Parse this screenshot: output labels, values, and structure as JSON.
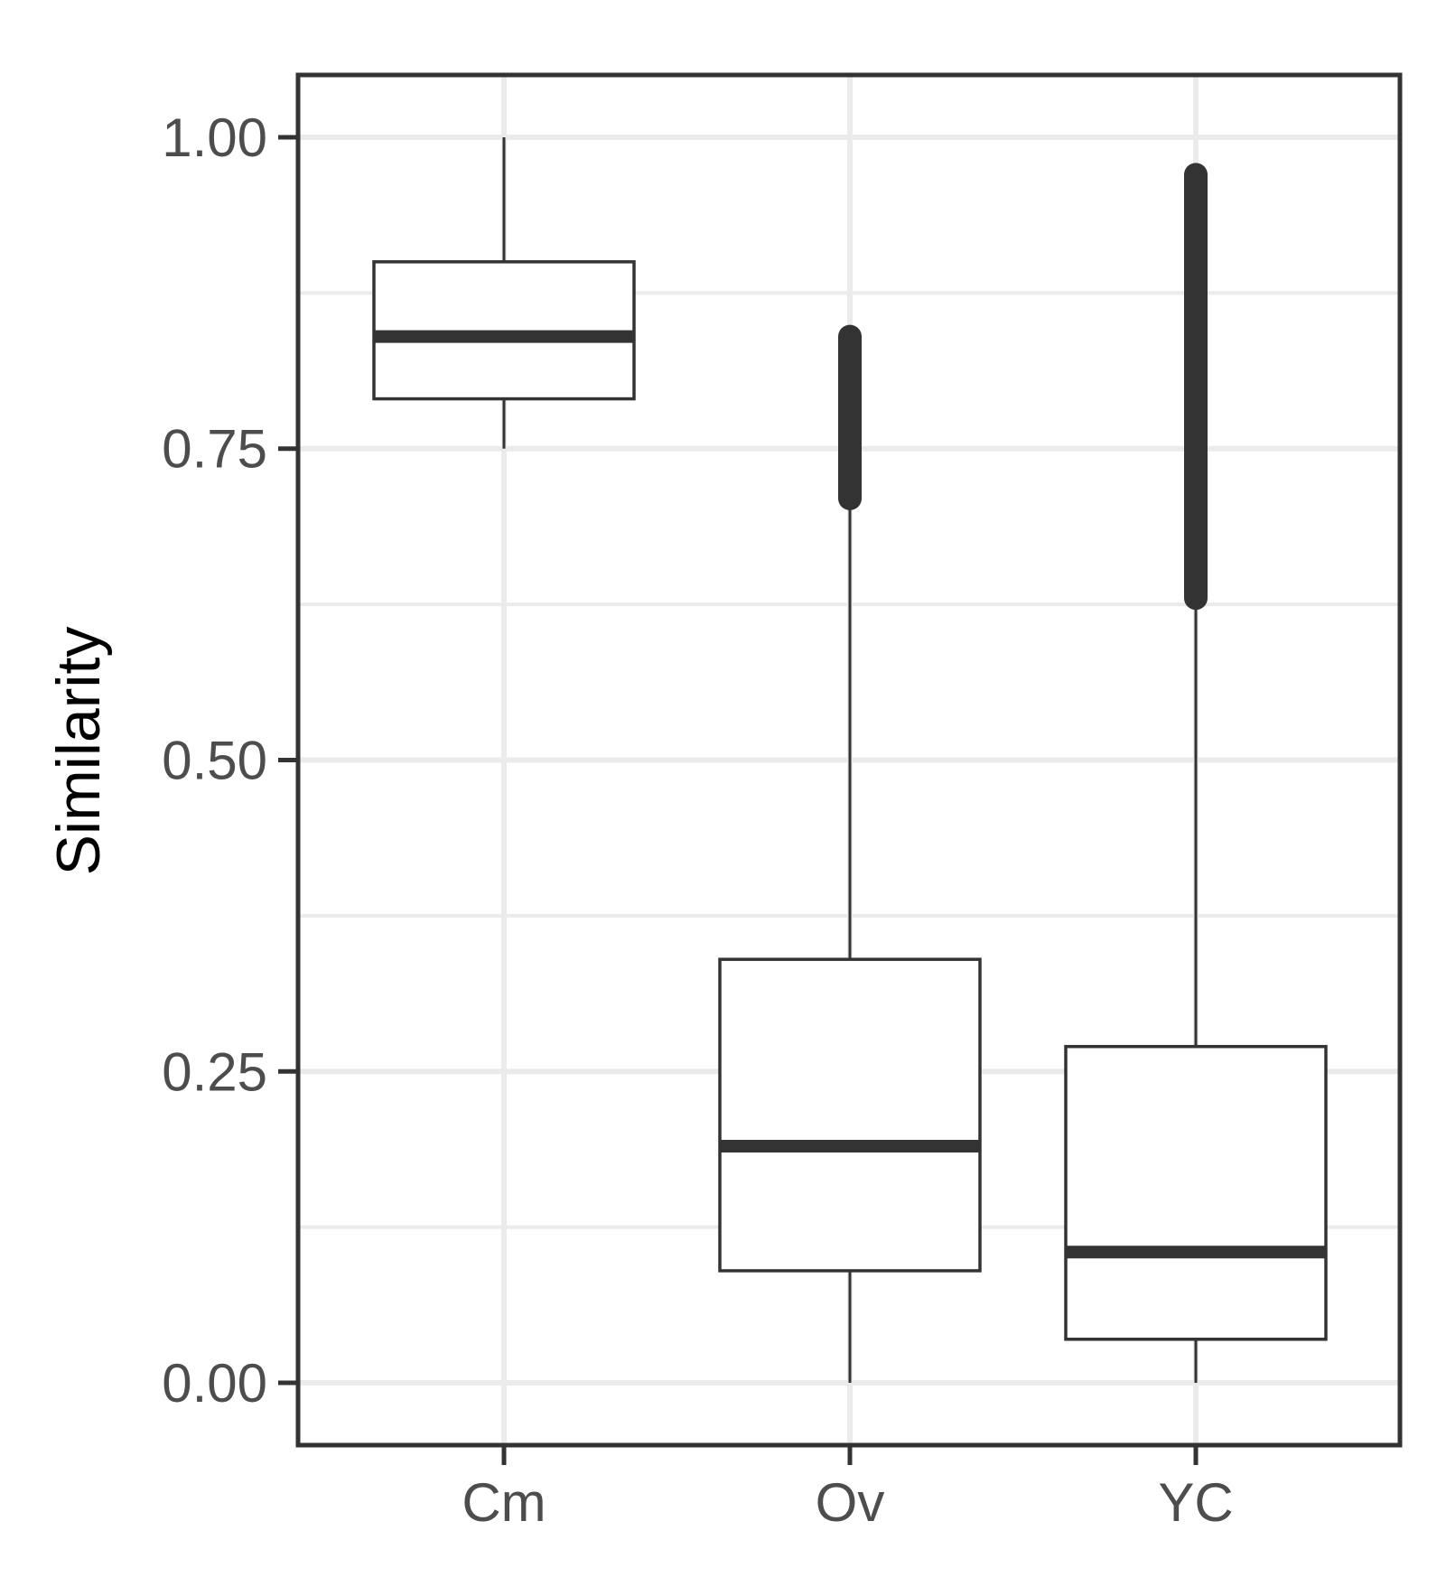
{
  "chart_data": {
    "type": "boxplot",
    "ylabel": "Similarity",
    "xlabel": "",
    "categories": [
      "Cm",
      "Ov",
      "YC"
    ],
    "ylim": [
      -0.05,
      1.05
    ],
    "yticks": [
      "0.00",
      "0.25",
      "0.50",
      "0.75",
      "1.00"
    ],
    "ytick_values": [
      0.0,
      0.25,
      0.5,
      0.75,
      1.0
    ],
    "grid": true,
    "boxes": [
      {
        "category": "Cm",
        "whisker_low": 0.75,
        "q1": 0.79,
        "median": 0.84,
        "q3": 0.9,
        "whisker_high": 1.0,
        "outliers_range": null
      },
      {
        "category": "Ov",
        "whisker_low": 0.0,
        "q1": 0.09,
        "median": 0.19,
        "q3": 0.34,
        "whisker_high": 0.71,
        "outliers_range": [
          0.71,
          0.84
        ]
      },
      {
        "category": "YC",
        "whisker_low": 0.0,
        "q1": 0.035,
        "median": 0.105,
        "q3": 0.27,
        "whisker_high": 0.63,
        "outliers_range": [
          0.63,
          0.97
        ]
      }
    ]
  },
  "colors": {
    "panel_border": "#333333",
    "grid": "#ebebeb",
    "box_line": "#333333",
    "outlier": "#333333",
    "tick_text": "#4d4d4d"
  }
}
